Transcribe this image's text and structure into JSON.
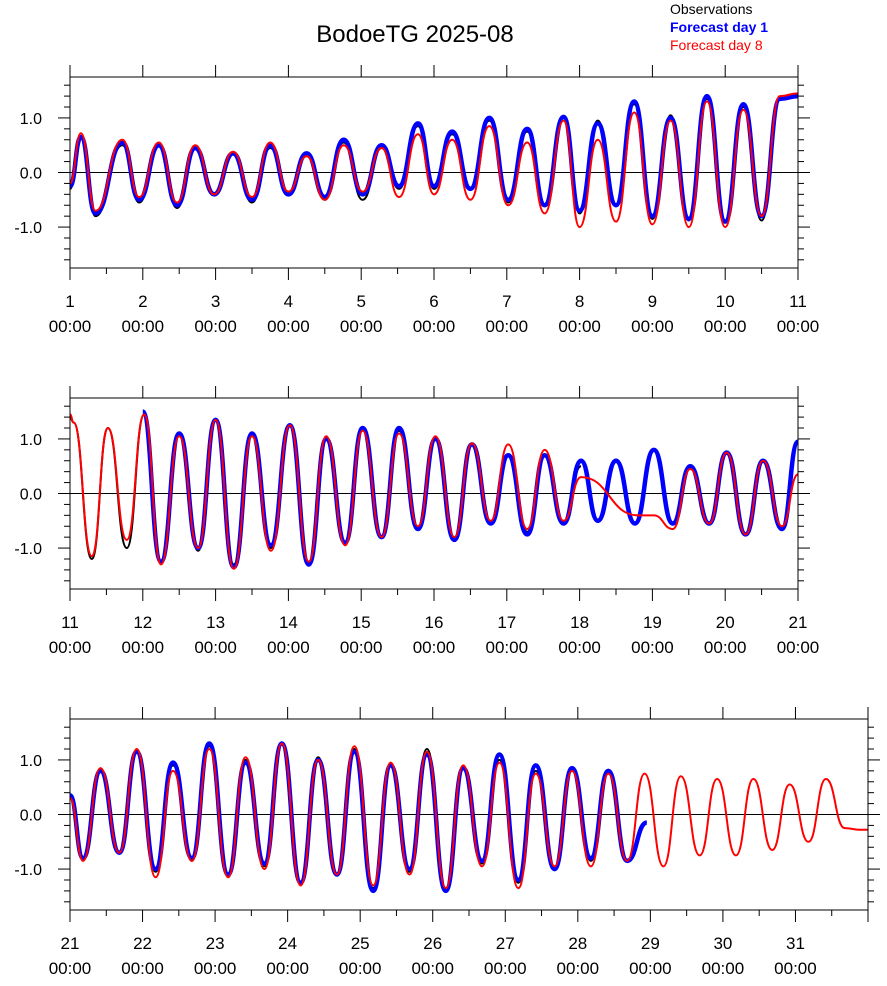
{
  "title": "BodoeTG 2025-08",
  "legend": [
    {
      "label": "Observations",
      "color": "#000000",
      "bold": false
    },
    {
      "label": "Forecast day 1",
      "color": "#0000ff",
      "bold": true
    },
    {
      "label": "Forecast day 8",
      "color": "#ff0000",
      "bold": false
    }
  ],
  "chart_data": [
    {
      "type": "line",
      "xlim": [
        1,
        11
      ],
      "ylim": [
        -1.75,
        1.75
      ],
      "yticks": [
        -1.0,
        0.0,
        1.0
      ],
      "ytick_labels": [
        "-1.0",
        "0.0",
        "1.0"
      ],
      "xticks": [
        {
          "x": 1,
          "day": "1",
          "time": "00:00"
        },
        {
          "x": 2,
          "day": "2",
          "time": "00:00"
        },
        {
          "x": 3,
          "day": "3",
          "time": "00:00"
        },
        {
          "x": 4,
          "day": "4",
          "time": "00:00"
        },
        {
          "x": 5,
          "day": "5",
          "time": "00:00"
        },
        {
          "x": 6,
          "day": "6",
          "time": "00:00"
        },
        {
          "x": 7,
          "day": "7",
          "time": "00:00"
        },
        {
          "x": 8,
          "day": "8",
          "time": "00:00"
        },
        {
          "x": 9,
          "day": "9",
          "time": "00:00"
        },
        {
          "x": 10,
          "day": "10",
          "time": "00:00"
        },
        {
          "x": 11,
          "day": "11",
          "time": "00:00"
        }
      ],
      "series": [
        {
          "name": "Observations",
          "color": "#000000",
          "x": [
            1.0,
            1.15,
            1.35,
            1.72,
            1.95,
            2.22,
            2.47,
            2.72,
            2.98,
            3.24,
            3.5,
            3.75,
            4.0,
            4.25,
            4.5,
            4.76,
            5.02,
            5.28,
            5.52,
            5.78,
            6.0,
            6.25,
            6.5,
            6.76,
            7.02,
            7.28,
            7.52,
            7.78,
            8.0,
            8.25,
            8.5,
            8.75,
            9.0,
            9.25,
            9.5,
            9.75,
            10.0,
            10.25,
            10.5,
            10.75,
            11.0
          ],
          "y": [
            -0.3,
            0.65,
            -0.8,
            0.5,
            -0.55,
            0.5,
            -0.65,
            0.45,
            -0.4,
            0.35,
            -0.55,
            0.45,
            -0.4,
            0.3,
            -0.5,
            0.55,
            -0.5,
            0.45,
            -0.3,
            0.85,
            -0.3,
            0.7,
            -0.3,
            0.95,
            -0.55,
            0.75,
            -0.6,
            1.0,
            -0.75,
            0.95,
            -0.6,
            1.25,
            -0.85,
            1.05,
            -0.88,
            1.35,
            -0.9,
            1.2,
            -0.88,
            1.35,
            1.4
          ]
        },
        {
          "name": "Forecast day 1",
          "color": "#0000ff",
          "x": [
            1.0,
            1.15,
            1.35,
            1.72,
            1.95,
            2.22,
            2.47,
            2.72,
            2.98,
            3.24,
            3.5,
            3.75,
            4.0,
            4.25,
            4.5,
            4.76,
            5.02,
            5.28,
            5.52,
            5.78,
            6.0,
            6.25,
            6.5,
            6.76,
            7.02,
            7.28,
            7.52,
            7.78,
            8.0,
            8.25,
            8.5,
            8.75,
            9.0,
            9.25,
            9.5,
            9.75,
            10.0,
            10.25,
            10.5,
            10.75,
            11.0
          ],
          "y": [
            -0.25,
            0.65,
            -0.75,
            0.55,
            -0.5,
            0.5,
            -0.6,
            0.45,
            -0.4,
            0.35,
            -0.5,
            0.5,
            -0.4,
            0.35,
            -0.45,
            0.6,
            -0.4,
            0.5,
            -0.25,
            0.9,
            -0.25,
            0.75,
            -0.3,
            1.0,
            -0.5,
            0.8,
            -0.6,
            1.02,
            -0.7,
            0.9,
            -0.6,
            1.3,
            -0.8,
            1.0,
            -0.85,
            1.4,
            -0.9,
            1.25,
            -0.8,
            1.35,
            1.4
          ]
        },
        {
          "name": "Forecast day 8",
          "color": "#ff0000",
          "x": [
            1.0,
            1.15,
            1.35,
            1.72,
            1.95,
            2.22,
            2.47,
            2.72,
            2.98,
            3.24,
            3.5,
            3.75,
            4.0,
            4.25,
            4.5,
            4.76,
            5.02,
            5.28,
            5.52,
            5.78,
            6.0,
            6.25,
            6.5,
            6.76,
            7.02,
            7.28,
            7.52,
            7.78,
            8.0,
            8.25,
            8.5,
            8.75,
            9.0,
            9.25,
            9.5,
            9.75,
            10.0,
            10.25,
            10.5,
            10.75,
            11.0
          ],
          "y": [
            -0.2,
            0.72,
            -0.7,
            0.6,
            -0.45,
            0.55,
            -0.55,
            0.5,
            -0.4,
            0.38,
            -0.45,
            0.55,
            -0.35,
            0.3,
            -0.5,
            0.5,
            -0.35,
            0.45,
            -0.45,
            0.7,
            -0.4,
            0.6,
            -0.5,
            0.85,
            -0.6,
            0.55,
            -0.75,
            0.95,
            -1.0,
            0.6,
            -0.9,
            1.1,
            -0.95,
            0.95,
            -1.0,
            1.3,
            -1.0,
            1.15,
            -0.8,
            1.4,
            1.45
          ]
        }
      ]
    },
    {
      "type": "line",
      "xlim": [
        11,
        21
      ],
      "ylim": [
        -1.75,
        1.75
      ],
      "yticks": [
        -1.0,
        0.0,
        1.0
      ],
      "ytick_labels": [
        "-1.0",
        "0.0",
        "1.0"
      ],
      "xticks": [
        {
          "x": 11,
          "day": "11",
          "time": "00:00"
        },
        {
          "x": 12,
          "day": "12",
          "time": "00:00"
        },
        {
          "x": 13,
          "day": "13",
          "time": "00:00"
        },
        {
          "x": 14,
          "day": "14",
          "time": "00:00"
        },
        {
          "x": 15,
          "day": "15",
          "time": "00:00"
        },
        {
          "x": 16,
          "day": "16",
          "time": "00:00"
        },
        {
          "x": 17,
          "day": "17",
          "time": "00:00"
        },
        {
          "x": 18,
          "day": "18",
          "time": "00:00"
        },
        {
          "x": 19,
          "day": "19",
          "time": "00:00"
        },
        {
          "x": 20,
          "day": "20",
          "time": "00:00"
        },
        {
          "x": 21,
          "day": "21",
          "time": "00:00"
        }
      ],
      "series": [
        {
          "name": "Observations",
          "color": "#000000",
          "x": [
            11.0,
            11.05,
            11.3,
            11.52,
            11.78,
            12.02,
            12.25,
            12.5,
            12.76,
            13.0,
            13.25,
            13.5,
            13.76,
            14.02,
            14.28,
            14.52,
            14.78,
            15.02,
            15.28,
            15.52,
            15.78,
            16.02,
            16.28,
            16.52,
            16.78,
            17.02,
            17.28,
            17.52,
            17.78,
            18.02
          ],
          "y": [
            1.4,
            1.3,
            -1.2,
            1.2,
            -1.0,
            1.45,
            -1.25,
            1.1,
            -1.05,
            1.35,
            -1.3,
            1.1,
            -1.0,
            1.25,
            -1.25,
            1.0,
            -0.9,
            1.2,
            -0.8,
            1.15,
            -0.65,
            1.0,
            -0.8,
            0.9,
            -0.55,
            0.7,
            -0.7,
            0.7,
            -0.55,
            0.5
          ]
        },
        {
          "name": "Forecast day 1",
          "color": "#0000ff",
          "x": [
            12.0,
            12.25,
            12.5,
            12.76,
            13.0,
            13.25,
            13.5,
            13.76,
            14.02,
            14.28,
            14.52,
            14.78,
            15.02,
            15.28,
            15.52,
            15.78,
            16.02,
            16.28,
            16.52,
            16.78,
            17.02,
            17.28,
            17.52,
            17.78,
            18.02,
            18.25,
            18.5,
            18.76,
            19.02,
            19.28,
            19.52,
            19.78,
            20.02,
            20.28,
            20.52,
            20.78,
            21.0
          ],
          "y": [
            1.5,
            -1.25,
            1.1,
            -1.0,
            1.35,
            -1.35,
            1.1,
            -0.95,
            1.25,
            -1.3,
            1.0,
            -0.9,
            1.2,
            -0.8,
            1.2,
            -0.65,
            1.0,
            -0.85,
            0.9,
            -0.55,
            0.7,
            -0.75,
            0.7,
            -0.55,
            0.6,
            -0.5,
            0.6,
            -0.55,
            0.8,
            -0.55,
            0.5,
            -0.55,
            0.75,
            -0.75,
            0.6,
            -0.65,
            0.95
          ]
        },
        {
          "name": "Forecast day 8",
          "color": "#ff0000",
          "x": [
            11.0,
            11.05,
            11.3,
            11.52,
            11.78,
            12.02,
            12.25,
            12.5,
            12.76,
            13.0,
            13.25,
            13.5,
            13.76,
            14.02,
            14.28,
            14.52,
            14.78,
            15.02,
            15.28,
            15.52,
            15.78,
            16.02,
            16.28,
            16.52,
            16.78,
            17.02,
            17.28,
            17.52,
            17.78,
            18.02,
            18.8,
            19.02,
            19.28,
            19.52,
            19.78,
            20.02,
            20.28,
            20.52,
            20.78,
            21.0
          ],
          "y": [
            1.45,
            1.3,
            -1.15,
            1.2,
            -0.85,
            1.45,
            -1.3,
            1.05,
            -1.0,
            1.35,
            -1.38,
            1.05,
            -1.05,
            1.25,
            -1.25,
            1.05,
            -0.95,
            1.15,
            -0.8,
            1.1,
            -0.6,
            1.05,
            -0.8,
            0.92,
            -0.5,
            0.9,
            -0.65,
            0.8,
            -0.5,
            0.3,
            -0.4,
            -0.4,
            -0.65,
            0.45,
            -0.55,
            0.75,
            -0.75,
            0.6,
            -0.6,
            0.35
          ]
        }
      ]
    },
    {
      "type": "line",
      "xlim": [
        21,
        32
      ],
      "ylim": [
        -1.75,
        1.75
      ],
      "yticks": [
        -1.0,
        0.0,
        1.0
      ],
      "ytick_labels": [
        "-1.0",
        "0.0",
        "1.0"
      ],
      "xticks": [
        {
          "x": 21,
          "day": "21",
          "time": "00:00"
        },
        {
          "x": 22,
          "day": "22",
          "time": "00:00"
        },
        {
          "x": 23,
          "day": "23",
          "time": "00:00"
        },
        {
          "x": 24,
          "day": "24",
          "time": "00:00"
        },
        {
          "x": 25,
          "day": "25",
          "time": "00:00"
        },
        {
          "x": 26,
          "day": "26",
          "time": "00:00"
        },
        {
          "x": 27,
          "day": "27",
          "time": "00:00"
        },
        {
          "x": 28,
          "day": "28",
          "time": "00:00"
        },
        {
          "x": 29,
          "day": "29",
          "time": "00:00"
        },
        {
          "x": 30,
          "day": "30",
          "time": "00:00"
        },
        {
          "x": 31,
          "day": "31",
          "time": "00:00"
        }
      ],
      "series": [
        {
          "name": "Observations",
          "color": "#000000",
          "x": [
            21.0,
            21.18,
            21.42,
            21.68,
            21.92,
            22.18,
            22.42,
            22.68,
            22.92,
            23.18,
            23.42,
            23.68,
            23.92,
            24.18,
            24.42,
            24.68,
            24.92,
            25.18,
            25.42,
            25.68,
            25.92,
            26.18,
            26.42,
            26.68,
            26.92,
            27.18,
            27.42,
            27.68,
            27.92,
            28.18,
            28.42,
            28.68,
            28.95
          ],
          "y": [
            0.3,
            -0.8,
            0.8,
            -0.7,
            1.15,
            -1.05,
            0.9,
            -0.85,
            1.25,
            -1.1,
            1.0,
            -0.95,
            1.3,
            -1.25,
            1.05,
            -1.1,
            1.2,
            -1.35,
            0.9,
            -1.05,
            1.2,
            -1.35,
            0.85,
            -0.9,
            1.0,
            -1.25,
            0.8,
            -1.0,
            0.8,
            -0.85,
            0.8,
            -0.85,
            -0.15
          ]
        },
        {
          "name": "Forecast day 1",
          "color": "#0000ff",
          "x": [
            21.0,
            21.18,
            21.42,
            21.68,
            21.92,
            22.18,
            22.42,
            22.68,
            22.92,
            23.18,
            23.42,
            23.68,
            23.92,
            24.18,
            24.42,
            24.68,
            24.92,
            25.18,
            25.42,
            25.68,
            25.92,
            26.18,
            26.42,
            26.68,
            26.92,
            27.18,
            27.42,
            27.68,
            27.92,
            28.18,
            28.42,
            28.68,
            28.95
          ],
          "y": [
            0.35,
            -0.8,
            0.8,
            -0.7,
            1.15,
            -1.0,
            0.95,
            -0.8,
            1.3,
            -1.1,
            0.95,
            -0.9,
            1.3,
            -1.25,
            1.0,
            -1.1,
            1.15,
            -1.4,
            0.9,
            -1.0,
            1.1,
            -1.4,
            0.85,
            -0.85,
            1.1,
            -1.2,
            0.9,
            -1.0,
            0.85,
            -0.8,
            0.8,
            -0.85,
            -0.15
          ]
        },
        {
          "name": "Forecast day 8",
          "color": "#ff0000",
          "x": [
            21.0,
            21.18,
            21.42,
            21.68,
            21.92,
            22.18,
            22.42,
            22.68,
            22.92,
            23.18,
            23.42,
            23.68,
            23.92,
            24.18,
            24.42,
            24.68,
            24.92,
            25.18,
            25.42,
            25.68,
            25.92,
            26.18,
            26.42,
            26.68,
            26.92,
            27.18,
            27.42,
            27.68,
            27.92,
            28.18,
            28.42,
            28.68,
            28.92,
            29.18,
            29.42,
            29.68,
            29.92,
            30.18,
            30.42,
            30.68,
            30.92,
            31.18,
            31.42,
            31.68,
            31.9,
            32.0
          ],
          "y": [
            0.3,
            -0.85,
            0.85,
            -0.7,
            1.2,
            -1.15,
            0.8,
            -0.85,
            1.2,
            -1.15,
            1.05,
            -1.0,
            1.3,
            -1.3,
            1.0,
            -1.1,
            1.25,
            -1.3,
            0.95,
            -1.1,
            1.15,
            -1.35,
            0.9,
            -0.95,
            0.95,
            -1.35,
            0.75,
            -0.95,
            0.8,
            -0.95,
            0.75,
            -0.85,
            0.75,
            -0.95,
            0.7,
            -0.75,
            0.65,
            -0.75,
            0.65,
            -0.65,
            0.55,
            -0.5,
            0.65,
            -0.25,
            -0.28,
            -0.28
          ]
        }
      ]
    }
  ]
}
